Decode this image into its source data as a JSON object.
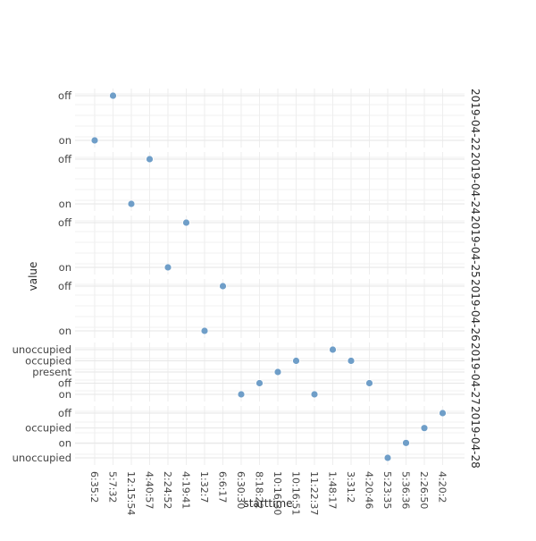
{
  "chart_data": {
    "type": "scatter",
    "title": "",
    "xlabel": "starttime",
    "ylabel": "value",
    "grid": true,
    "marker_color": "#6f9ec8",
    "x_ticks": [
      "6:35:2",
      "5:7:32",
      "12:15:54",
      "4:40:57",
      "2:24:52",
      "4:19:41",
      "1:32:7",
      "6:6:17",
      "6:30:30",
      "8:18:22",
      "10:16:30",
      "10:16:51",
      "11:22:37",
      "1:48:17",
      "3:31:2",
      "4:20:46",
      "5:23:35",
      "5:36:36",
      "2:26:50",
      "4:20:2"
    ],
    "facets": [
      {
        "label": "2019-04-22",
        "categories": [
          "on",
          "off"
        ],
        "points": [
          {
            "x": "6:35:2",
            "y": "on"
          },
          {
            "x": "5:7:32",
            "y": "off"
          }
        ]
      },
      {
        "label": "2019-04-24",
        "categories": [
          "on",
          "off"
        ],
        "points": [
          {
            "x": "12:15:54",
            "y": "on"
          },
          {
            "x": "4:40:57",
            "y": "off"
          }
        ]
      },
      {
        "label": "2019-04-25",
        "categories": [
          "on",
          "off"
        ],
        "points": [
          {
            "x": "2:24:52",
            "y": "on"
          },
          {
            "x": "4:19:41",
            "y": "off"
          }
        ]
      },
      {
        "label": "2019-04-26",
        "categories": [
          "on",
          "off"
        ],
        "points": [
          {
            "x": "1:32:7",
            "y": "on"
          },
          {
            "x": "6:6:17",
            "y": "off"
          }
        ]
      },
      {
        "label": "2019-04-27",
        "categories": [
          "on",
          "off",
          "present",
          "occupied",
          "unoccupied"
        ],
        "points": [
          {
            "x": "6:30:30",
            "y": "on"
          },
          {
            "x": "8:18:22",
            "y": "off"
          },
          {
            "x": "10:16:30",
            "y": "present"
          },
          {
            "x": "10:16:51",
            "y": "occupied"
          },
          {
            "x": "11:22:37",
            "y": "on"
          },
          {
            "x": "1:48:17",
            "y": "unoccupied"
          },
          {
            "x": "3:31:2",
            "y": "occupied"
          },
          {
            "x": "4:20:46",
            "y": "off"
          }
        ]
      },
      {
        "label": "2019-04-28",
        "categories": [
          "unoccupied",
          "on",
          "occupied",
          "off"
        ],
        "points": [
          {
            "x": "5:23:35",
            "y": "unoccupied"
          },
          {
            "x": "5:36:36",
            "y": "on"
          },
          {
            "x": "2:26:50",
            "y": "occupied"
          },
          {
            "x": "4:20:2",
            "y": "off"
          }
        ]
      }
    ]
  }
}
